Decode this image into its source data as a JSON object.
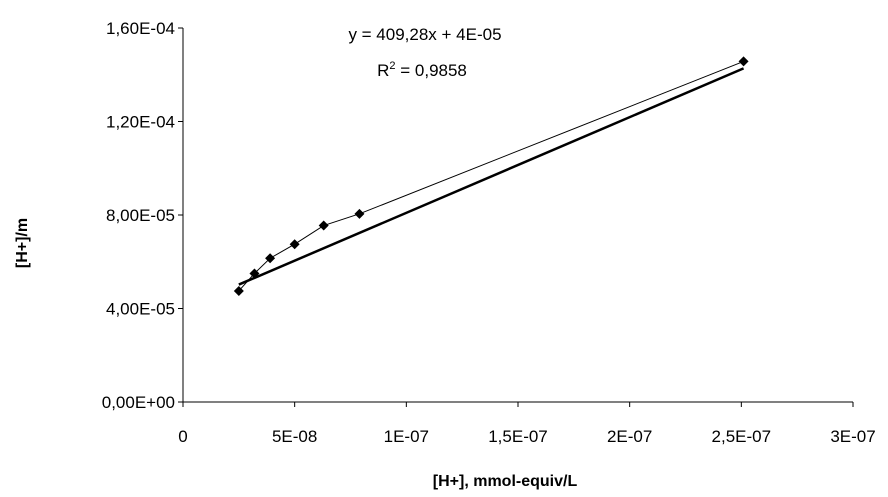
{
  "chart_data": {
    "type": "scatter",
    "xlabel": "[H+], mmol-equiv/L",
    "ylabel": "[H+]/m",
    "xlim": [
      0,
      3e-07
    ],
    "ylim": [
      0,
      0.00016
    ],
    "x_ticks": [
      {
        "value": 0,
        "label": "0"
      },
      {
        "value": 5e-08,
        "label": "5E-08"
      },
      {
        "value": 1e-07,
        "label": "1E-07"
      },
      {
        "value": 1.5e-07,
        "label": "1,5E-07"
      },
      {
        "value": 2e-07,
        "label": "2E-07"
      },
      {
        "value": 2.5e-07,
        "label": "2,5E-07"
      },
      {
        "value": 3e-07,
        "label": "3E-07"
      }
    ],
    "y_ticks": [
      {
        "value": 0,
        "label": "0,00E+00"
      },
      {
        "value": 4e-05,
        "label": "4,00E-05"
      },
      {
        "value": 8e-05,
        "label": "8,00E-05"
      },
      {
        "value": 0.00012,
        "label": "1,20E-04"
      },
      {
        "value": 0.00016,
        "label": "1,60E-04"
      }
    ],
    "series": [
      {
        "x": [
          2.5e-08,
          3.2e-08,
          3.9e-08,
          5e-08,
          6.3e-08,
          7.9e-08,
          2.51e-07
        ],
        "y": [
          4.75e-05,
          5.5e-05,
          6.15e-05,
          6.75e-05,
          7.55e-05,
          8.05e-05,
          0.0001457
        ],
        "marker": "diamond",
        "connected": true
      }
    ],
    "trendline": {
      "type": "linear",
      "slope": 409.28,
      "intercept": 4e-05,
      "x_range": [
        2.5e-08,
        2.51e-07
      ],
      "equation_label": "y = 409,28x + 4E-05",
      "r2_prefix": "R",
      "r2_exponent": "2",
      "r2_suffix": " = 0,9858"
    },
    "grid": false,
    "legend": "none",
    "colors": {
      "axis": "#000000",
      "series": "#000000",
      "background": "#ffffff"
    }
  }
}
